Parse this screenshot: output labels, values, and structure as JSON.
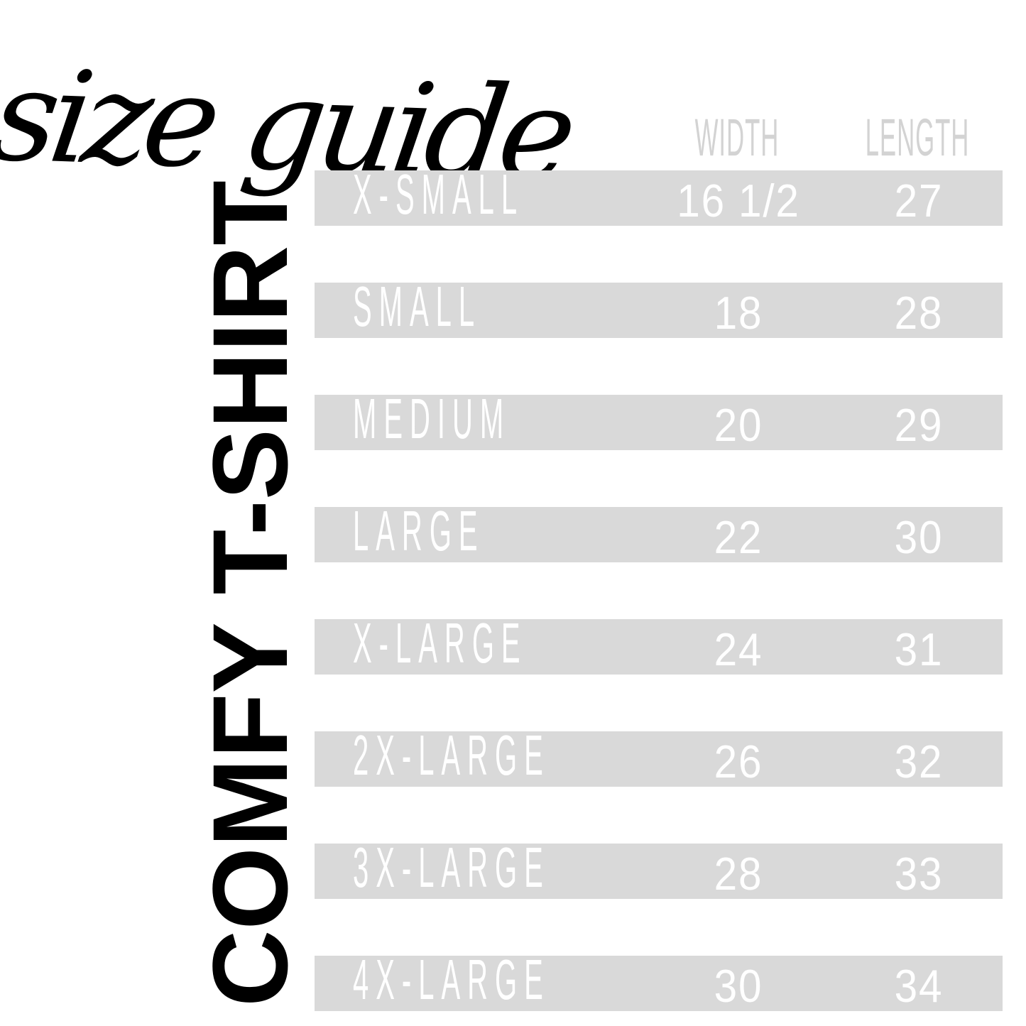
{
  "colors": {
    "background": "#ffffff",
    "ink": "#000000",
    "row_bg": "#d9d9d9",
    "header_text": "#d3d3d3",
    "row_text": "#ffffff"
  },
  "chart_data": {
    "type": "table",
    "title": "size guide",
    "product": "COMFY T-SHIRT",
    "columns": [
      "WIDTH",
      "LENGTH"
    ],
    "rows": [
      {
        "size": "X-SMALL",
        "width": "16 1/2",
        "length": "27"
      },
      {
        "size": "SMALL",
        "width": "18",
        "length": "28"
      },
      {
        "size": "MEDIUM",
        "width": "20",
        "length": "29"
      },
      {
        "size": "LARGE",
        "width": "22",
        "length": "30"
      },
      {
        "size": "X-LARGE",
        "width": "24",
        "length": "31"
      },
      {
        "size": "2X-LARGE",
        "width": "26",
        "length": "32"
      },
      {
        "size": "3X-LARGE",
        "width": "28",
        "length": "33"
      },
      {
        "size": "4X-LARGE",
        "width": "30",
        "length": "34"
      }
    ],
    "layout_hints": {
      "header_row_background": false,
      "zebra_stripes": "all rows gray on white gaps",
      "size_column_header": ""
    }
  }
}
